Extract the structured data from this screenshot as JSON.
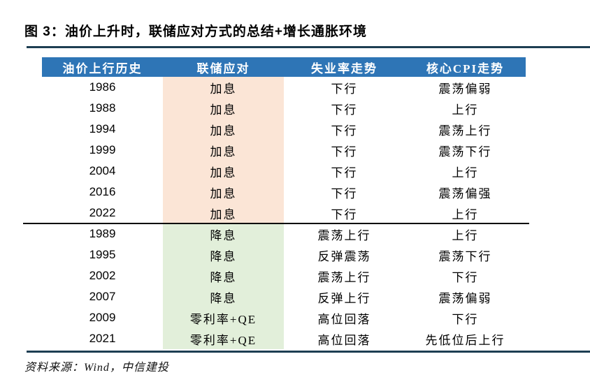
{
  "figure": {
    "title": "图 3：油价上升时，联储应对方式的总结+增长通胀环境"
  },
  "table": {
    "headers": [
      "油价上行历史",
      "联储应对",
      "失业率走势",
      "核心CPI走势"
    ],
    "groups": [
      {
        "name": "rate-hike-period",
        "response_bg": "#FBE5D6",
        "rows": [
          {
            "year": "1986",
            "fed_response": "加息",
            "unemployment_trend": "下行",
            "core_cpi_trend": "震荡偏弱"
          },
          {
            "year": "1988",
            "fed_response": "加息",
            "unemployment_trend": "下行",
            "core_cpi_trend": "上行"
          },
          {
            "year": "1994",
            "fed_response": "加息",
            "unemployment_trend": "下行",
            "core_cpi_trend": "震荡上行"
          },
          {
            "year": "1999",
            "fed_response": "加息",
            "unemployment_trend": "下行",
            "core_cpi_trend": "震荡下行"
          },
          {
            "year": "2004",
            "fed_response": "加息",
            "unemployment_trend": "下行",
            "core_cpi_trend": "上行"
          },
          {
            "year": "2016",
            "fed_response": "加息",
            "unemployment_trend": "下行",
            "core_cpi_trend": "震荡偏强"
          },
          {
            "year": "2022",
            "fed_response": "加息",
            "unemployment_trend": "下行",
            "core_cpi_trend": "上行"
          }
        ]
      },
      {
        "name": "rate-cut-period",
        "response_bg": "#E2EFDA",
        "rows": [
          {
            "year": "1989",
            "fed_response": "降息",
            "unemployment_trend": "震荡上行",
            "core_cpi_trend": "上行"
          },
          {
            "year": "1995",
            "fed_response": "降息",
            "unemployment_trend": "反弹震荡",
            "core_cpi_trend": "震荡下行"
          },
          {
            "year": "2002",
            "fed_response": "降息",
            "unemployment_trend": "震荡上行",
            "core_cpi_trend": "下行"
          },
          {
            "year": "2007",
            "fed_response": "降息",
            "unemployment_trend": "反弹上行",
            "core_cpi_trend": "震荡偏弱"
          },
          {
            "year": "2009",
            "fed_response": "零利率+QE",
            "unemployment_trend": "高位回落",
            "core_cpi_trend": "下行"
          },
          {
            "year": "2021",
            "fed_response": "零利率+QE",
            "unemployment_trend": "高位回落",
            "core_cpi_trend": "先低位后上行"
          }
        ]
      }
    ]
  },
  "source": "资料来源：Wind，中信建投",
  "colors": {
    "header_bg": "#2E75B6",
    "header_text": "#FFFFFF",
    "rule": "#1D3E52",
    "separator": "#000000"
  }
}
